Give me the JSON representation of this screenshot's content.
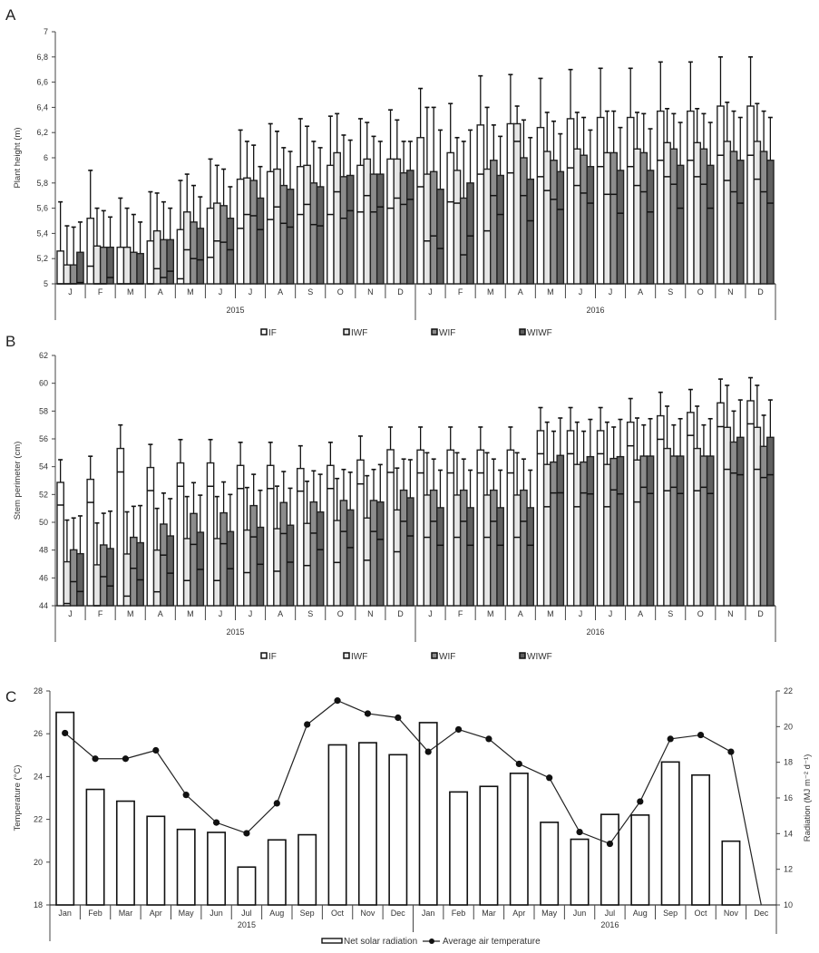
{
  "chart_data": [
    {
      "type": "bar",
      "panel": "A",
      "ylabel": "Plant height (m)",
      "ylim": [
        5,
        7
      ],
      "yticks": [
        "5",
        "5,2",
        "5,4",
        "5,6",
        "5,8",
        "6",
        "6,2",
        "6,4",
        "6,6",
        "6,8",
        "7"
      ],
      "categories": [
        "J",
        "F",
        "M",
        "A",
        "M",
        "J",
        "J",
        "A",
        "S",
        "O",
        "N",
        "D",
        "J",
        "F",
        "M",
        "A",
        "M",
        "J",
        "J",
        "A",
        "S",
        "O",
        "N",
        "D"
      ],
      "years": [
        "2015",
        "2016"
      ],
      "legend": [
        "IF",
        "IWF",
        "WIF",
        "WIWF"
      ],
      "series": [
        {
          "name": "IF",
          "color": "#ffffff",
          "values": [
            5.26,
            5.52,
            5.29,
            5.34,
            5.43,
            5.6,
            5.83,
            5.89,
            5.93,
            5.94,
            5.94,
            5.99,
            6.16,
            6.04,
            6.26,
            6.27,
            6.24,
            6.31,
            6.32,
            6.32,
            6.37,
            6.37,
            6.41,
            6.41
          ],
          "err_upper": [
            5.65,
            5.9,
            5.68,
            5.73,
            5.82,
            5.99,
            6.22,
            6.27,
            6.31,
            6.33,
            6.31,
            6.38,
            6.55,
            6.43,
            6.65,
            6.66,
            6.63,
            6.7,
            6.71,
            6.71,
            6.76,
            6.76,
            6.8,
            6.8
          ]
        },
        {
          "name": "IWF",
          "color": "#e6e6e6",
          "values": [
            5.15,
            5.3,
            5.29,
            5.42,
            5.57,
            5.64,
            5.84,
            5.91,
            5.94,
            6.04,
            5.99,
            5.99,
            5.87,
            5.9,
            5.91,
            6.27,
            6.05,
            6.07,
            6.04,
            6.07,
            6.12,
            6.12,
            6.13,
            6.13
          ],
          "err_upper": [
            5.46,
            5.6,
            5.6,
            5.72,
            5.87,
            5.94,
            6.13,
            6.21,
            6.25,
            6.35,
            6.28,
            6.3,
            6.4,
            6.16,
            6.4,
            6.41,
            6.36,
            6.36,
            6.37,
            6.36,
            6.39,
            6.39,
            6.44,
            6.43
          ]
        },
        {
          "name": "WIF",
          "color": "#8c8c8c",
          "values": [
            5.15,
            5.29,
            5.25,
            5.35,
            5.49,
            5.62,
            5.82,
            5.78,
            5.8,
            5.85,
            5.87,
            5.88,
            5.89,
            5.68,
            5.98,
            6.0,
            5.98,
            6.02,
            6.04,
            6.04,
            6.07,
            6.07,
            6.05,
            6.05
          ],
          "err_upper": [
            5.45,
            5.58,
            5.55,
            5.65,
            5.78,
            5.91,
            6.1,
            6.08,
            6.13,
            6.18,
            6.17,
            6.13,
            6.4,
            6.13,
            6.26,
            6.3,
            6.29,
            6.32,
            6.37,
            6.35,
            6.35,
            6.35,
            6.37,
            6.37
          ]
        },
        {
          "name": "WIWF",
          "color": "#5f5f5f",
          "values": [
            5.25,
            5.29,
            5.24,
            5.35,
            5.44,
            5.52,
            5.68,
            5.75,
            5.77,
            5.86,
            5.87,
            5.9,
            5.75,
            5.8,
            5.86,
            5.83,
            5.89,
            5.93,
            5.9,
            5.9,
            5.94,
            5.94,
            5.98,
            5.98
          ],
          "err_upper": [
            5.49,
            5.53,
            5.49,
            5.6,
            5.69,
            5.77,
            5.93,
            6.05,
            6.08,
            6.14,
            6.13,
            6.13,
            6.22,
            6.22,
            6.17,
            6.16,
            6.19,
            6.22,
            6.24,
            6.23,
            6.28,
            6.28,
            6.32,
            6.32
          ]
        }
      ]
    },
    {
      "type": "bar",
      "panel": "B",
      "ylabel": "Stem perimeter (cm)",
      "ylim": [
        44,
        62
      ],
      "yticks": [
        "44",
        "46",
        "48",
        "50",
        "52",
        "54",
        "56",
        "58",
        "60",
        "62"
      ],
      "categories": [
        "J",
        "F",
        "M",
        "A",
        "M",
        "J",
        "J",
        "A",
        "S",
        "O",
        "N",
        "D",
        "J",
        "F",
        "M",
        "A",
        "M",
        "J",
        "J",
        "A",
        "S",
        "O",
        "N",
        "D"
      ],
      "years": [
        "2015",
        "2016"
      ],
      "legend": [
        "IF",
        "IWF",
        "WIF",
        "WIWF"
      ],
      "series": [
        {
          "name": "IF",
          "color": "#ffffff",
          "values": [
            52.87,
            53.09,
            55.31,
            53.94,
            54.27,
            54.27,
            54.09,
            54.09,
            53.87,
            54.09,
            54.48,
            55.22,
            55.2,
            55.2,
            55.2,
            55.2,
            56.59,
            56.59,
            56.59,
            57.2,
            57.66,
            57.9,
            58.59,
            58.74
          ],
          "err_upper": [
            54.5,
            54.75,
            57.0,
            55.6,
            55.95,
            55.95,
            55.75,
            55.75,
            55.5,
            55.75,
            56.2,
            56.85,
            56.85,
            56.85,
            56.85,
            56.85,
            58.25,
            58.25,
            58.25,
            58.9,
            59.35,
            59.55,
            60.3,
            60.4
          ]
        },
        {
          "name": "IWF",
          "color": "#e6e6e6",
          "values": [
            47.16,
            46.94,
            47.72,
            48.0,
            48.83,
            48.83,
            49.44,
            49.54,
            49.92,
            50.13,
            50.31,
            50.89,
            51.96,
            51.96,
            51.96,
            51.96,
            54.16,
            54.16,
            54.16,
            54.48,
            55.31,
            55.31,
            56.83,
            56.83
          ],
          "err_upper": [
            50.16,
            49.95,
            50.75,
            51.0,
            51.85,
            51.85,
            52.5,
            52.6,
            52.95,
            53.15,
            53.35,
            53.9,
            55.0,
            55.0,
            55.0,
            55.0,
            57.2,
            57.2,
            57.2,
            57.5,
            58.35,
            58.35,
            59.85,
            59.85
          ]
        },
        {
          "name": "WIF",
          "color": "#8c8c8c",
          "values": [
            48.02,
            48.37,
            48.92,
            49.87,
            50.63,
            50.68,
            51.2,
            51.42,
            51.46,
            51.57,
            51.57,
            52.31,
            52.31,
            52.31,
            52.31,
            52.31,
            54.33,
            54.33,
            54.59,
            54.76,
            54.76,
            54.76,
            55.77,
            55.46
          ],
          "err_upper": [
            50.31,
            50.65,
            51.15,
            52.1,
            52.85,
            52.9,
            53.45,
            53.65,
            53.7,
            53.8,
            53.8,
            54.55,
            54.55,
            54.55,
            54.55,
            54.55,
            56.55,
            56.55,
            56.85,
            57.0,
            57.0,
            57.0,
            58.0,
            57.7
          ]
        },
        {
          "name": "WIWF",
          "color": "#5f5f5f",
          "values": [
            47.74,
            48.11,
            48.53,
            49.02,
            49.28,
            49.33,
            49.64,
            49.79,
            50.74,
            50.89,
            51.46,
            51.76,
            51.05,
            51.05,
            51.05,
            51.05,
            54.81,
            54.72,
            54.72,
            54.76,
            54.76,
            54.76,
            56.11,
            56.11
          ],
          "err_upper": [
            50.46,
            50.8,
            51.2,
            51.7,
            51.95,
            52.0,
            52.3,
            52.45,
            53.45,
            53.6,
            54.15,
            54.5,
            53.75,
            53.75,
            53.75,
            53.75,
            57.5,
            57.4,
            57.4,
            57.45,
            57.45,
            57.45,
            58.8,
            58.8
          ]
        }
      ]
    },
    {
      "type": "bar+line",
      "panel": "C",
      "ylabel_left": "Temperature (°C)",
      "ylabel_right": "Radiation (MJ m⁻² d⁻¹)",
      "ylim_left": [
        18,
        28
      ],
      "ylim_right": [
        10,
        22
      ],
      "yticks_left": [
        "18",
        "20",
        "22",
        "24",
        "26",
        "28"
      ],
      "yticks_right": [
        "10",
        "12",
        "14",
        "16",
        "18",
        "20",
        "22"
      ],
      "categories": [
        "Jan",
        "Feb",
        "Mar",
        "Apr",
        "May",
        "Jun",
        "Jul",
        "Aug",
        "Sep",
        "Oct",
        "Nov",
        "Dec",
        "Jan",
        "Feb",
        "Mar",
        "Apr",
        "May",
        "Jun",
        "Jul",
        "Aug",
        "Sep",
        "Oct",
        "Nov",
        "Dec"
      ],
      "years": [
        "2015",
        "2016"
      ],
      "legend": [
        "Net solar radiation",
        "Average air temperature"
      ],
      "bars": {
        "name": "Net solar radiation",
        "axis": "left",
        "values": [
          27.0,
          23.4,
          22.85,
          22.14,
          21.53,
          21.39,
          19.77,
          21.04,
          21.28,
          25.48,
          25.58,
          25.02,
          26.52,
          23.28,
          23.54,
          24.15,
          21.86,
          21.07,
          22.23,
          22.2,
          24.68,
          24.07,
          20.98,
          null
        ]
      },
      "line": {
        "name": "Average air temperature",
        "axis": "right",
        "values": [
          19.64,
          18.2,
          18.2,
          18.67,
          16.17,
          14.62,
          14.02,
          15.7,
          20.12,
          21.46,
          20.73,
          20.5,
          18.59,
          19.84,
          19.31,
          17.91,
          17.13,
          14.09,
          13.43,
          15.8,
          19.31,
          19.53,
          18.59,
          10.0
        ]
      }
    }
  ],
  "panels": {
    "a": "A",
    "b": "B",
    "c": "C"
  }
}
